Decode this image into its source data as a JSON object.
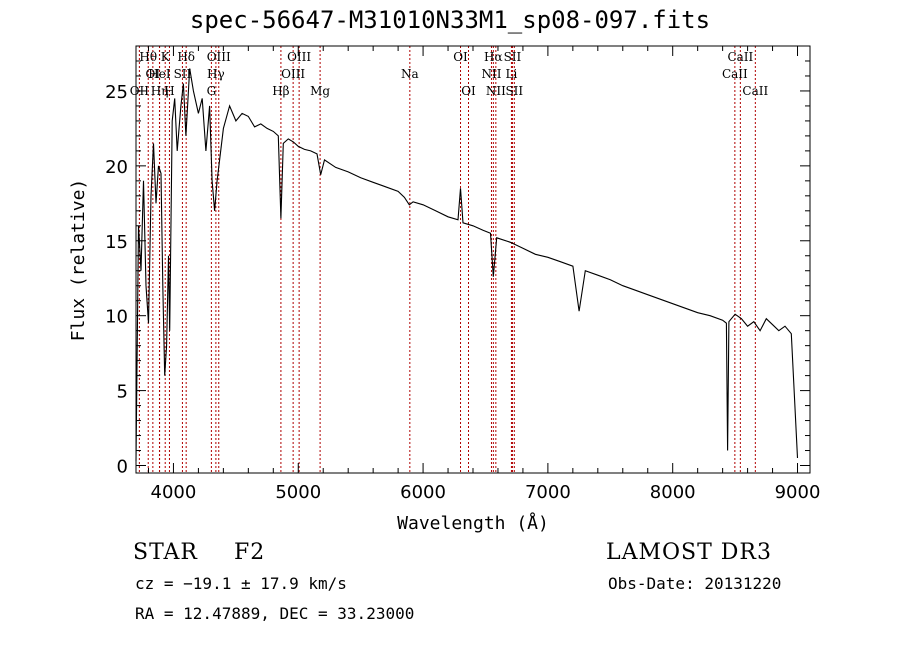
{
  "title": "spec-56647-M31010N33M1_sp08-097.fits",
  "chart_data": {
    "type": "line",
    "title": "spec-56647-M31010N33M1_sp08-097.fits",
    "xlabel": "Wavelength (Å)",
    "ylabel": "Flux (relative)",
    "xlim": [
      3700,
      9100
    ],
    "ylim": [
      -0.5,
      28
    ],
    "xticks": [
      4000,
      5000,
      6000,
      7000,
      8000,
      9000
    ],
    "yticks": [
      0,
      5,
      10,
      15,
      20,
      25
    ],
    "series": [
      {
        "name": "flux",
        "color": "#000000",
        "points": [
          [
            3700,
            0.3
          ],
          [
            3720,
            16.0
          ],
          [
            3740,
            13.0
          ],
          [
            3760,
            19.0
          ],
          [
            3780,
            12.0
          ],
          [
            3800,
            9.5
          ],
          [
            3820,
            18.0
          ],
          [
            3840,
            21.5
          ],
          [
            3860,
            17.5
          ],
          [
            3880,
            20.0
          ],
          [
            3900,
            19.5
          ],
          [
            3915,
            12.0
          ],
          [
            3930,
            6.0
          ],
          [
            3945,
            8.0
          ],
          [
            3960,
            14.0
          ],
          [
            3970,
            9.0
          ],
          [
            3990,
            23.0
          ],
          [
            4010,
            24.5
          ],
          [
            4030,
            21.0
          ],
          [
            4060,
            24.0
          ],
          [
            4080,
            25.5
          ],
          [
            4100,
            22.0
          ],
          [
            4130,
            26.5
          ],
          [
            4160,
            25.0
          ],
          [
            4200,
            23.5
          ],
          [
            4230,
            24.5
          ],
          [
            4260,
            21.0
          ],
          [
            4290,
            24.0
          ],
          [
            4310,
            19.0
          ],
          [
            4330,
            17.0
          ],
          [
            4350,
            19.0
          ],
          [
            4400,
            22.5
          ],
          [
            4450,
            24.0
          ],
          [
            4500,
            23.0
          ],
          [
            4550,
            23.5
          ],
          [
            4600,
            23.3
          ],
          [
            4650,
            22.6
          ],
          [
            4700,
            22.8
          ],
          [
            4750,
            22.5
          ],
          [
            4800,
            22.3
          ],
          [
            4840,
            22.0
          ],
          [
            4861,
            16.5
          ],
          [
            4880,
            21.5
          ],
          [
            4920,
            21.8
          ],
          [
            4960,
            21.6
          ],
          [
            5000,
            21.3
          ],
          [
            5050,
            21.1
          ],
          [
            5100,
            21.0
          ],
          [
            5150,
            20.8
          ],
          [
            5180,
            19.4
          ],
          [
            5210,
            20.4
          ],
          [
            5300,
            19.9
          ],
          [
            5400,
            19.6
          ],
          [
            5500,
            19.2
          ],
          [
            5600,
            18.9
          ],
          [
            5700,
            18.6
          ],
          [
            5800,
            18.3
          ],
          [
            5850,
            17.9
          ],
          [
            5890,
            17.4
          ],
          [
            5920,
            17.6
          ],
          [
            6000,
            17.4
          ],
          [
            6100,
            17.0
          ],
          [
            6200,
            16.6
          ],
          [
            6280,
            16.4
          ],
          [
            6300,
            18.5
          ],
          [
            6320,
            16.2
          ],
          [
            6400,
            16.0
          ],
          [
            6480,
            15.7
          ],
          [
            6540,
            15.5
          ],
          [
            6563,
            12.6
          ],
          [
            6590,
            15.2
          ],
          [
            6700,
            14.9
          ],
          [
            6800,
            14.5
          ],
          [
            6900,
            14.1
          ],
          [
            7000,
            13.9
          ],
          [
            7100,
            13.6
          ],
          [
            7200,
            13.3
          ],
          [
            7250,
            10.3
          ],
          [
            7300,
            13.0
          ],
          [
            7400,
            12.7
          ],
          [
            7500,
            12.4
          ],
          [
            7600,
            12.0
          ],
          [
            7700,
            11.7
          ],
          [
            7800,
            11.4
          ],
          [
            7900,
            11.1
          ],
          [
            8000,
            10.8
          ],
          [
            8100,
            10.5
          ],
          [
            8200,
            10.2
          ],
          [
            8300,
            10.0
          ],
          [
            8400,
            9.7
          ],
          [
            8430,
            9.5
          ],
          [
            8440,
            1.0
          ],
          [
            8450,
            9.6
          ],
          [
            8500,
            10.1
          ],
          [
            8550,
            9.8
          ],
          [
            8600,
            9.3
          ],
          [
            8650,
            9.6
          ],
          [
            8700,
            9.0
          ],
          [
            8750,
            9.8
          ],
          [
            8800,
            9.4
          ],
          [
            8850,
            9.0
          ],
          [
            8900,
            9.3
          ],
          [
            8950,
            8.8
          ],
          [
            9000,
            0.5
          ]
        ]
      }
    ],
    "line_marker_color": "#b00000",
    "line_markers": [
      {
        "label": "OII",
        "wavelength": 3727,
        "row": 3
      },
      {
        "label": "Hθ",
        "wavelength": 3798,
        "row": 1
      },
      {
        "label": "OI",
        "wavelength": 3835,
        "row": 2
      },
      {
        "label": "Hη",
        "wavelength": 3889,
        "row": 3
      },
      {
        "label": "HeI",
        "wavelength": 3888,
        "row": 2
      },
      {
        "label": "K",
        "wavelength": 3934,
        "row": 1
      },
      {
        "label": "H",
        "wavelength": 3968,
        "row": 3
      },
      {
        "label": "SII",
        "wavelength": 4072,
        "row": 2
      },
      {
        "label": "Hδ",
        "wavelength": 4102,
        "row": 1
      },
      {
        "label": "G",
        "wavelength": 4304,
        "row": 3
      },
      {
        "label": "Hγ",
        "wavelength": 4340,
        "row": 2
      },
      {
        "label": "OIII",
        "wavelength": 4363,
        "row": 1
      },
      {
        "label": "Hβ",
        "wavelength": 4861,
        "row": 3
      },
      {
        "label": "OIII",
        "wavelength": 4959,
        "row": 2
      },
      {
        "label": "OIII",
        "wavelength": 5007,
        "row": 1
      },
      {
        "label": "Mg",
        "wavelength": 5175,
        "row": 3
      },
      {
        "label": "Na",
        "wavelength": 5894,
        "row": 2
      },
      {
        "label": "OI",
        "wavelength": 6300,
        "row": 1
      },
      {
        "label": "OI",
        "wavelength": 6364,
        "row": 3
      },
      {
        "label": "NII",
        "wavelength": 6548,
        "row": 2
      },
      {
        "label": "Hα",
        "wavelength": 6563,
        "row": 1
      },
      {
        "label": "NII",
        "wavelength": 6583,
        "row": 3
      },
      {
        "label": "Li",
        "wavelength": 6708,
        "row": 2
      },
      {
        "label": "SII",
        "wavelength": 6716,
        "row": 1
      },
      {
        "label": "SII",
        "wavelength": 6731,
        "row": 3
      },
      {
        "label": "CaII",
        "wavelength": 8498,
        "row": 2
      },
      {
        "label": "CaII",
        "wavelength": 8542,
        "row": 1
      },
      {
        "label": "CaII",
        "wavelength": 8662,
        "row": 3
      }
    ]
  },
  "info": {
    "class": "STAR",
    "subclass": "F2",
    "cz": "cz = −19.1 ± 17.9 km/s",
    "radec": "RA =  12.47889, DEC =  33.23000",
    "survey": "LAMOST DR3",
    "obs_date": "Obs-Date: 20131220"
  }
}
